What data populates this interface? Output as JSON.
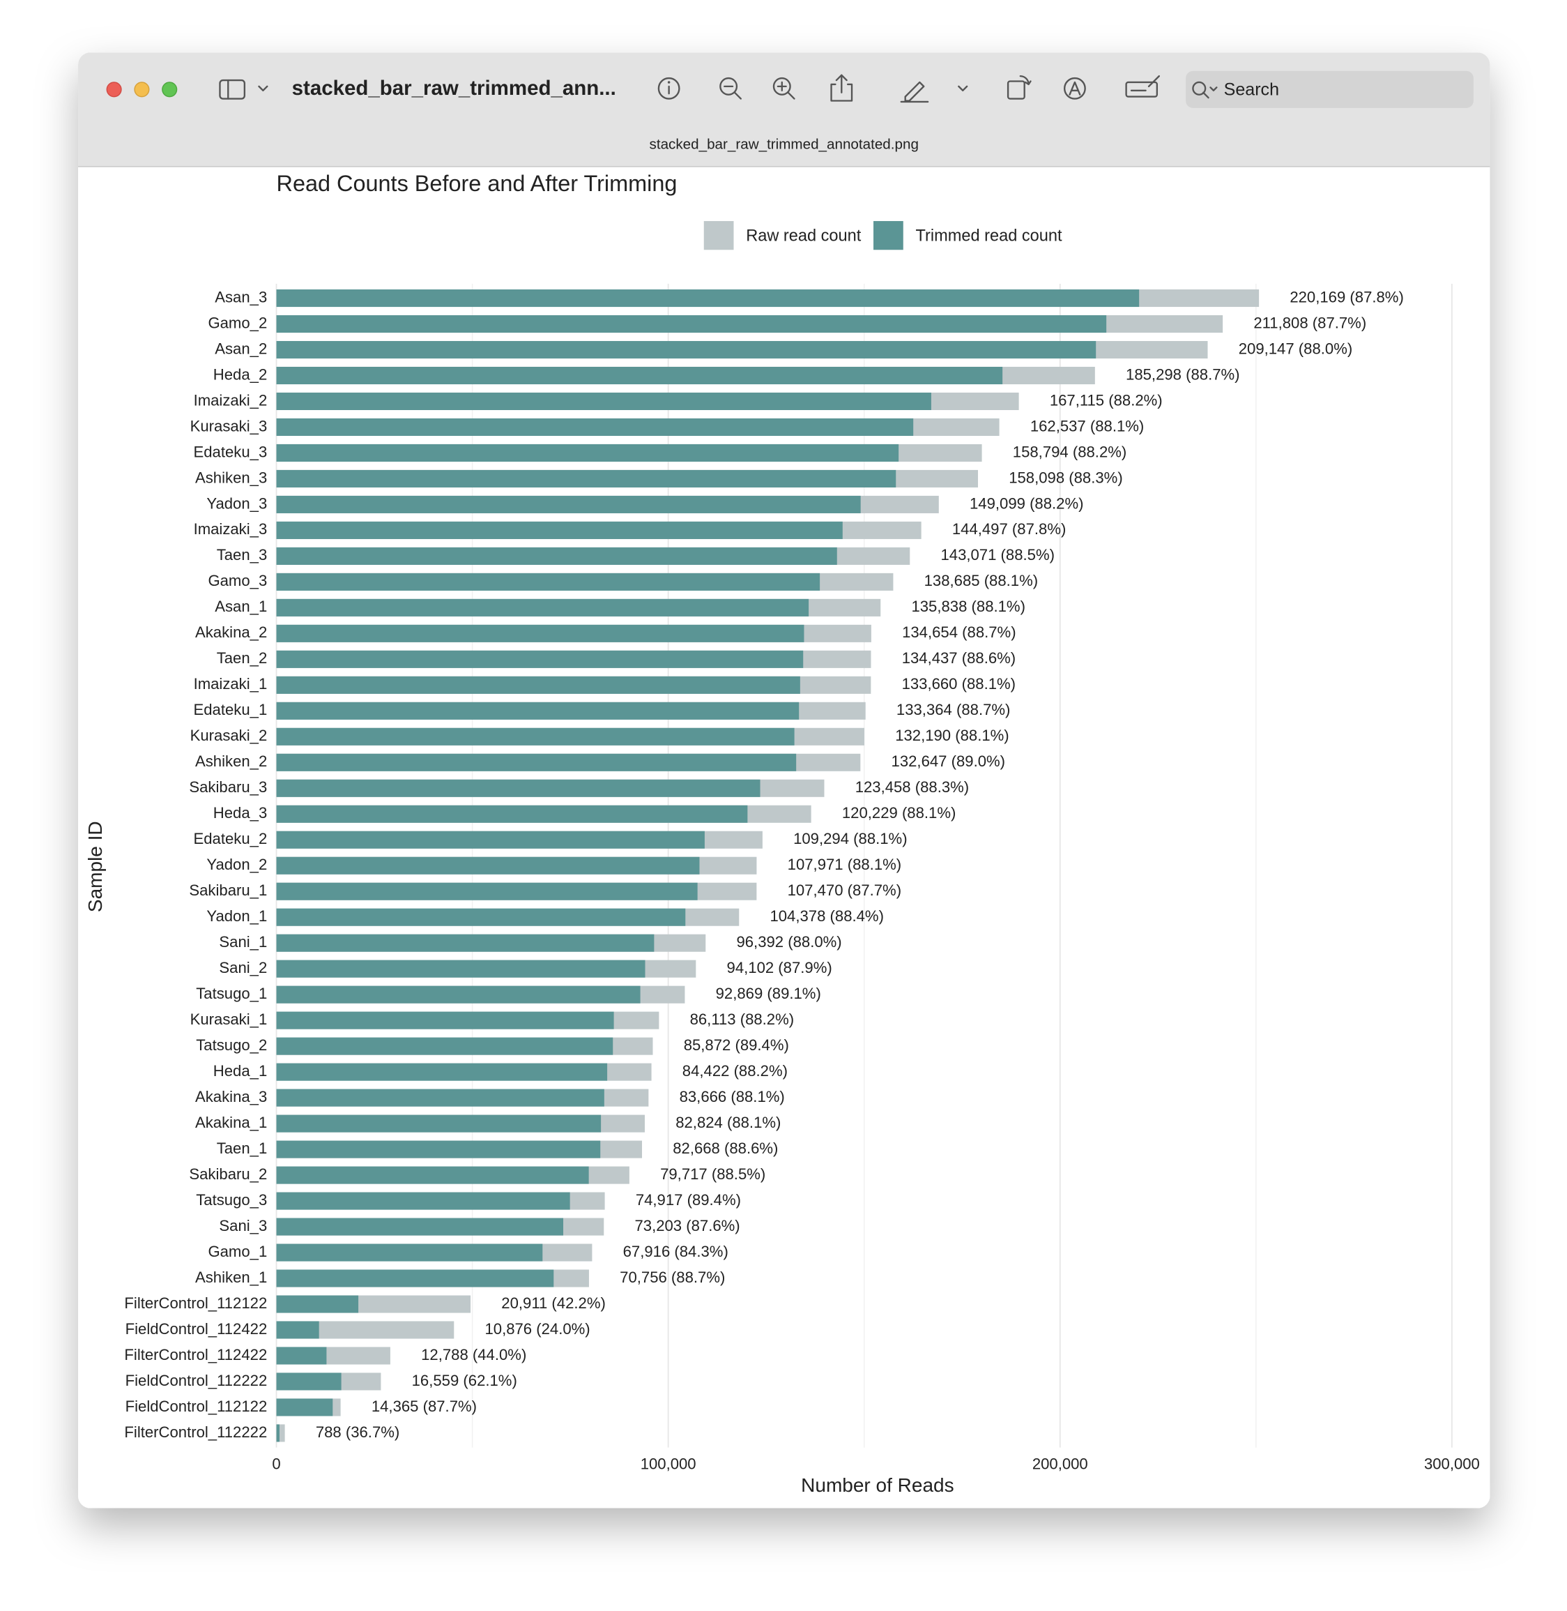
{
  "window": {
    "title": "stacked_bar_raw_trimmed_ann...",
    "filename": "stacked_bar_raw_trimmed_annotated.png",
    "search_placeholder": "Search"
  },
  "chart_data": {
    "type": "hbar",
    "barmode": "overlay",
    "title": "Read Counts Before and After Trimming",
    "x_label": "Number of Reads",
    "y_label": "Sample ID",
    "categories": [
      "Asan_3",
      "Gamo_2",
      "Asan_2",
      "Heda_2",
      "Imaizaki_2",
      "Kurasaki_3",
      "Edateku_3",
      "Ashiken_3",
      "Yadon_3",
      "Imaizaki_3",
      "Taen_3",
      "Gamo_3",
      "Asan_1",
      "Akakina_2",
      "Taen_2",
      "Imaizaki_1",
      "Edateku_1",
      "Kurasaki_2",
      "Ashiken_2",
      "Sakibaru_3",
      "Heda_3",
      "Edateku_2",
      "Yadon_2",
      "Sakibaru_1",
      "Yadon_1",
      "Sani_1",
      "Sani_2",
      "Tatsugo_1",
      "Kurasaki_1",
      "Tatsugo_2",
      "Heda_1",
      "Akakina_3",
      "Akakina_1",
      "Taen_1",
      "Sakibaru_2",
      "Tatsugo_3",
      "Sani_3",
      "Gamo_1",
      "Ashiken_1",
      "FilterControl_112122",
      "FieldControl_112422",
      "FilterControl_112422",
      "FieldControl_112222",
      "FieldControl_112122",
      "FilterControl_112222"
    ],
    "series": [
      {
        "name": "Raw read count",
        "color": "#bfc8ca",
        "values": [
          250762,
          241514,
          237667,
          208904,
          189473,
          184492,
          180039,
          179046,
          169046,
          164575,
          161662,
          157418,
          154186,
          151808,
          151735,
          151714,
          150354,
          150045,
          149042,
          139816,
          136469,
          124057,
          122555,
          122543,
          118075,
          109536,
          107056,
          104230,
          97634,
          96054,
          95717,
          94967,
          94011,
          93305,
          90076,
          83800,
          83565,
          80565,
          79770,
          49552,
          45317,
          29064,
          26665,
          16380,
          2147
        ]
      },
      {
        "name": "Trimmed read count",
        "color": "#5b9595",
        "values": [
          220169,
          211808,
          209147,
          185298,
          167115,
          162537,
          158794,
          158098,
          149099,
          144497,
          143071,
          138685,
          135838,
          134654,
          134437,
          133660,
          133364,
          132190,
          132647,
          123458,
          120229,
          109294,
          107971,
          107470,
          104378,
          96392,
          94102,
          92869,
          86113,
          85872,
          84422,
          83666,
          82824,
          82668,
          79717,
          74917,
          73203,
          67916,
          70756,
          20911,
          10876,
          12788,
          16559,
          14365,
          788
        ],
        "value_labels": [
          "220,169 (87.8%)",
          "211,808 (87.7%)",
          "209,147 (88.0%)",
          "185,298 (88.7%)",
          "167,115 (88.2%)",
          "162,537 (88.1%)",
          "158,794 (88.2%)",
          "158,098 (88.3%)",
          "149,099 (88.2%)",
          "144,497 (87.8%)",
          "143,071 (88.5%)",
          "138,685 (88.1%)",
          "135,838 (88.1%)",
          "134,654 (88.7%)",
          "134,437 (88.6%)",
          "133,660 (88.1%)",
          "133,364 (88.7%)",
          "132,190 (88.1%)",
          "132,647 (89.0%)",
          "123,458 (88.3%)",
          "120,229 (88.1%)",
          "109,294 (88.1%)",
          "107,971 (88.1%)",
          "107,470 (87.7%)",
          "104,378 (88.4%)",
          "96,392 (88.0%)",
          "94,102 (87.9%)",
          "92,869 (89.1%)",
          "86,113 (88.2%)",
          "85,872 (89.4%)",
          "84,422 (88.2%)",
          "83,666 (88.1%)",
          "82,824 (88.1%)",
          "82,668 (88.6%)",
          "79,717 (88.5%)",
          "74,917 (89.4%)",
          "73,203 (87.6%)",
          "67,916 (84.3%)",
          "70,756 (88.7%)",
          "20,911 (42.2%)",
          "10,876 (24.0%)",
          "12,788 (44.0%)",
          "16,559 (62.1%)",
          "14,365 (87.7%)",
          "788 (36.7%)"
        ]
      }
    ],
    "xlim": [
      0,
      300000
    ],
    "xticks": [
      0,
      {
        "value": 100000,
        "label": "100,000"
      },
      {
        "value": 200000,
        "label": "200,000"
      },
      {
        "value": 300000,
        "label": "300,000"
      }
    ],
    "x_minor_ticks": [
      50000,
      150000,
      250000
    ],
    "grid": true
  }
}
